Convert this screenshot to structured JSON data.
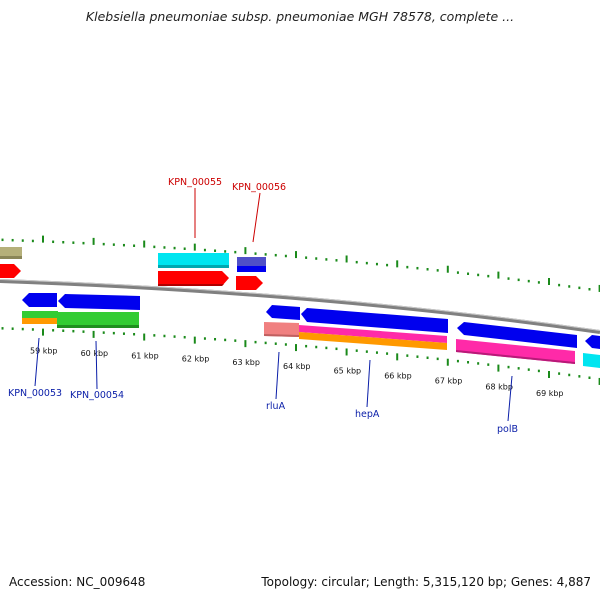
{
  "title": "Klebsiella pneumoniae subsp. pneumoniae MGH 78578, complete ...",
  "footer": {
    "accession": "Accession: NC_009648",
    "summary": "Topology: circular; Length: 5,315,120 bp; Genes: 4,887"
  },
  "colors": {
    "backbone": "#808080",
    "tick": "#1a8a1a",
    "forward_cds": "#ff0000",
    "reverse_cds": "#0000ee",
    "cyan": "#00e5f0",
    "olive": "#b5b07a",
    "green": "#33cc33",
    "orange": "#ff9900",
    "magenta": "#ff2aa8",
    "salmon": "#f08080",
    "slate": "#5050c8",
    "red_label": "#cc0000",
    "blue_label": "#0a1ea8"
  },
  "axis": {
    "unit": "kbp",
    "ticks": [
      {
        "value": 59,
        "label": "59 kbp"
      },
      {
        "value": 60,
        "label": "60 kbp"
      },
      {
        "value": 61,
        "label": "61 kbp"
      },
      {
        "value": 62,
        "label": "62 kbp"
      },
      {
        "value": 63,
        "label": "63 kbp"
      },
      {
        "value": 64,
        "label": "64 kbp"
      },
      {
        "value": 65,
        "label": "65 kbp"
      },
      {
        "value": 66,
        "label": "66 kbp"
      },
      {
        "value": 67,
        "label": "67 kbp"
      },
      {
        "value": 68,
        "label": "68 kbp"
      },
      {
        "value": 69,
        "label": "69 kbp"
      }
    ]
  },
  "gene_labels": {
    "top": [
      "KPN_00055",
      "KPN_00056"
    ],
    "bottom": [
      "KPN_00053",
      "KPN_00054",
      "rluA",
      "hepA",
      "polB"
    ]
  }
}
